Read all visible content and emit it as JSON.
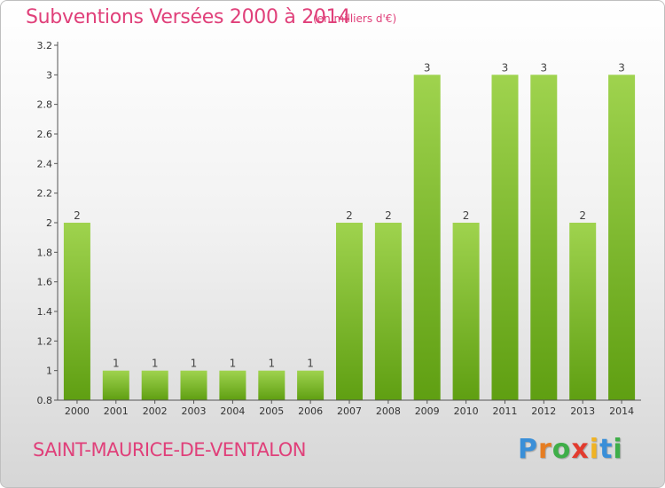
{
  "header": {
    "title": "Subventions Versées 2000 à 2014",
    "subtitle": "(en milliers d'€)"
  },
  "footer": {
    "commune": "SAINT-MAURICE-DE-VENTALON"
  },
  "logo": {
    "text": "Proxiti",
    "letter_colors": [
      "#3a8fd8",
      "#e67d22",
      "#3fae49",
      "#e23b2e",
      "#f0b323",
      "#3a8fd8",
      "#3fae49"
    ]
  },
  "colors": {
    "accent": "#e0407a",
    "bar_top": "#9fd34e",
    "bar_bottom": "#5f9f12",
    "axis": "#555555"
  },
  "chart_data": {
    "type": "bar",
    "categories": [
      "2000",
      "2001",
      "2002",
      "2003",
      "2004",
      "2005",
      "2006",
      "2007",
      "2008",
      "2009",
      "2010",
      "2011",
      "2012",
      "2013",
      "2014"
    ],
    "values": [
      2,
      1,
      1,
      1,
      1,
      1,
      1,
      2,
      2,
      3,
      2,
      3,
      3,
      2,
      3
    ],
    "data_labels": [
      "2",
      "1",
      "1",
      "1",
      "1",
      "1",
      "1",
      "2",
      "2",
      "3",
      "2",
      "3",
      "3",
      "2",
      "3"
    ],
    "ylim": [
      0.8,
      3.2
    ],
    "yticks": [
      0.8,
      1,
      1.2,
      1.4,
      1.6,
      1.8,
      2,
      2.2,
      2.4,
      2.6,
      2.8,
      3,
      3.2
    ],
    "ytick_labels": [
      "0.8",
      "1",
      "1.2",
      "1.4",
      "1.6",
      "1.8",
      "2",
      "2.2",
      "2.4",
      "2.6",
      "2.8",
      "3",
      "3.2"
    ],
    "grid": false,
    "legend": "none"
  }
}
